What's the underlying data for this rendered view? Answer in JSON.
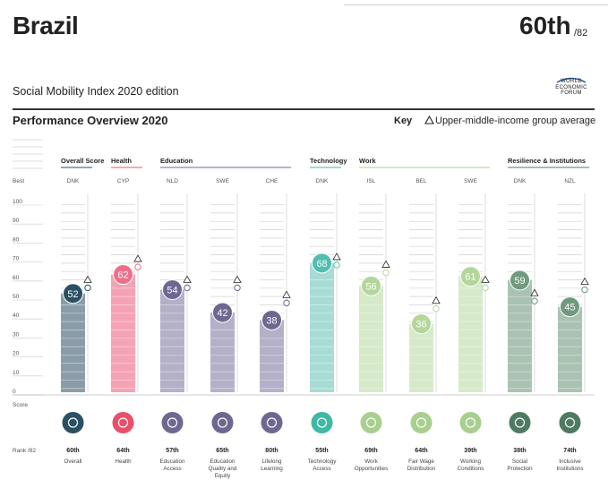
{
  "header": {
    "country": "Brazil",
    "rank": "60th",
    "rank_of": "/82",
    "edition": "Social Mobility Index 2020 edition",
    "wef_logo_text": [
      "WORLD",
      "ECONOMIC",
      "FORUM"
    ],
    "section_title": "Performance Overview 2020",
    "key_label": "Key",
    "key_text": "Upper-middle-income group average"
  },
  "chart_data": {
    "type": "bar",
    "title": "Performance Overview 2020",
    "ylabel": "Score",
    "ylim": [
      0,
      100
    ],
    "y_ticks": [
      0,
      10,
      20,
      30,
      40,
      50,
      60,
      70,
      80,
      90,
      100
    ],
    "best_label": "Best",
    "score_label": "Score",
    "rank_label": "Rank /82",
    "groups": [
      {
        "name": "Overall Score",
        "color": "#2b4f63",
        "pillars": [
          0
        ]
      },
      {
        "name": "Health",
        "color": "#e8506a",
        "pillars": [
          1
        ]
      },
      {
        "name": "Education",
        "color": "#6e6791",
        "pillars": [
          2,
          3,
          4
        ]
      },
      {
        "name": "Technology",
        "color": "#3fb8a6",
        "pillars": [
          5
        ]
      },
      {
        "name": "Work",
        "color": "#a9cf8e",
        "pillars": [
          6,
          7,
          8
        ]
      },
      {
        "name": "Resilience & Institutions",
        "color": "#4f7a62",
        "pillars": [
          9,
          10
        ]
      }
    ],
    "pillars": [
      {
        "best": "DNK",
        "value": 52,
        "avg": 55,
        "rank": "60th",
        "label": "Overall",
        "bar": "#8a9ca8",
        "dot": "#2b4f63",
        "icon": "overall-icon"
      },
      {
        "best": "CYP",
        "value": 62,
        "avg": 66,
        "rank": "64th",
        "label": "Health",
        "bar": "#f4a2b4",
        "dot": "#ee6f88",
        "icon": "health-icon"
      },
      {
        "best": "NLD",
        "value": 54,
        "avg": 55,
        "rank": "57th",
        "label": "Education Access",
        "bar": "#b3b0c8",
        "dot": "#6e6791",
        "icon": "education-access-icon"
      },
      {
        "best": "SWE",
        "value": 42,
        "avg": 55,
        "rank": "65th",
        "label": "Education Quality and Equity",
        "bar": "#b3b0c8",
        "dot": "#6e6791",
        "icon": "education-quality-icon"
      },
      {
        "best": "CHE",
        "value": 38,
        "avg": 47,
        "rank": "80th",
        "label": "Lifelong Learning",
        "bar": "#b3b0c8",
        "dot": "#6e6791",
        "icon": "lifelong-learning-icon"
      },
      {
        "best": "DNK",
        "value": 68,
        "avg": 67,
        "rank": "55th",
        "label": "Technology Access",
        "bar": "#a7dcd4",
        "dot": "#4fbeaf",
        "icon": "technology-icon"
      },
      {
        "best": "ISL",
        "value": 56,
        "avg": 63,
        "rank": "69th",
        "label": "Work Opportunities",
        "bar": "#d6e9c8",
        "dot": "#b4d69c",
        "icon": "work-opportunities-icon"
      },
      {
        "best": "BEL",
        "value": 36,
        "avg": 44,
        "rank": "64th",
        "label": "Fair Wage Distribution",
        "bar": "#d6e9c8",
        "dot": "#b4d69c",
        "icon": "fair-wage-icon"
      },
      {
        "best": "SWE",
        "value": 61,
        "avg": 55,
        "rank": "39th",
        "label": "Working Conditions",
        "bar": "#d6e9c8",
        "dot": "#b4d69c",
        "icon": "working-conditions-icon"
      },
      {
        "best": "DNK",
        "value": 59,
        "avg": 48,
        "rank": "38th",
        "label": "Social Protection",
        "bar": "#a9c2b1",
        "dot": "#6f9a7f",
        "icon": "social-protection-icon"
      },
      {
        "best": "NZL",
        "value": 45,
        "avg": 54,
        "rank": "74th",
        "label": "Inclusive Institutions",
        "bar": "#a9c2b1",
        "dot": "#6f9a7f",
        "icon": "inclusive-institutions-icon"
      }
    ]
  }
}
